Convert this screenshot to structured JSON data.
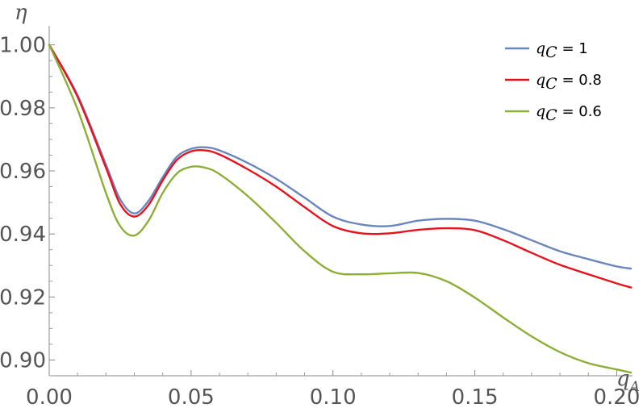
{
  "chart_data": {
    "type": "line",
    "title": "",
    "xlabel": "q",
    "xlabel_sub": "A",
    "ylabel": "η",
    "xlim": [
      0,
      0.205
    ],
    "ylim": [
      0.895,
      1.004
    ],
    "xticks": [
      0.0,
      0.05,
      0.1,
      0.15,
      0.2
    ],
    "xtick_labels": [
      "0.00",
      "0.05",
      "0.10",
      "0.15",
      "0.20"
    ],
    "yticks": [
      0.9,
      0.92,
      0.94,
      0.96,
      0.98,
      1.0
    ],
    "ytick_labels": [
      "0.90",
      "0.92",
      "0.94",
      "0.96",
      "0.98",
      "1.00"
    ],
    "legend_position": "top-right",
    "grid": false,
    "series": [
      {
        "name": "q_C = 1",
        "legend_var": "q",
        "legend_sub": "C",
        "legend_value": " = 1",
        "color": "#6a86bd",
        "x": [
          0.0,
          0.01,
          0.02,
          0.025,
          0.03,
          0.035,
          0.04,
          0.045,
          0.05,
          0.055,
          0.06,
          0.07,
          0.08,
          0.09,
          0.1,
          0.11,
          0.12,
          0.13,
          0.14,
          0.15,
          0.16,
          0.17,
          0.18,
          0.19,
          0.2,
          0.205
        ],
        "y": [
          1.0,
          0.984,
          0.962,
          0.951,
          0.9465,
          0.9505,
          0.958,
          0.9645,
          0.967,
          0.9675,
          0.9665,
          0.9625,
          0.9575,
          0.9515,
          0.9455,
          0.943,
          0.9425,
          0.9442,
          0.9448,
          0.9442,
          0.9415,
          0.938,
          0.9345,
          0.932,
          0.9297,
          0.929
        ]
      },
      {
        "name": "q_C = 0.8",
        "legend_var": "q",
        "legend_sub": "C",
        "legend_value": " = 0.8",
        "color": "#e8121c",
        "x": [
          0.0,
          0.01,
          0.02,
          0.025,
          0.03,
          0.035,
          0.04,
          0.045,
          0.05,
          0.055,
          0.06,
          0.07,
          0.08,
          0.09,
          0.1,
          0.11,
          0.12,
          0.13,
          0.14,
          0.15,
          0.16,
          0.17,
          0.18,
          0.19,
          0.2,
          0.205
        ],
        "y": [
          1.0,
          0.9835,
          0.961,
          0.9495,
          0.9455,
          0.9492,
          0.957,
          0.9635,
          0.9662,
          0.9665,
          0.9652,
          0.9605,
          0.955,
          0.9485,
          0.9425,
          0.9402,
          0.9402,
          0.9413,
          0.9418,
          0.9412,
          0.938,
          0.934,
          0.9302,
          0.9272,
          0.9243,
          0.923
        ]
      },
      {
        "name": "q_C = 0.6",
        "legend_var": "q",
        "legend_sub": "C",
        "legend_value": " = 0.6",
        "color": "#8caf35",
        "x": [
          0.0,
          0.01,
          0.02,
          0.025,
          0.03,
          0.035,
          0.04,
          0.045,
          0.05,
          0.055,
          0.06,
          0.07,
          0.08,
          0.09,
          0.1,
          0.11,
          0.12,
          0.13,
          0.14,
          0.15,
          0.16,
          0.17,
          0.18,
          0.19,
          0.2,
          0.205
        ],
        "y": [
          1.0,
          0.9795,
          0.953,
          0.9425,
          0.9395,
          0.9442,
          0.953,
          0.9592,
          0.9613,
          0.961,
          0.959,
          0.952,
          0.9435,
          0.9345,
          0.928,
          0.9272,
          0.9275,
          0.9276,
          0.925,
          0.9198,
          0.9135,
          0.9075,
          0.9025,
          0.899,
          0.897,
          0.896
        ]
      }
    ]
  }
}
